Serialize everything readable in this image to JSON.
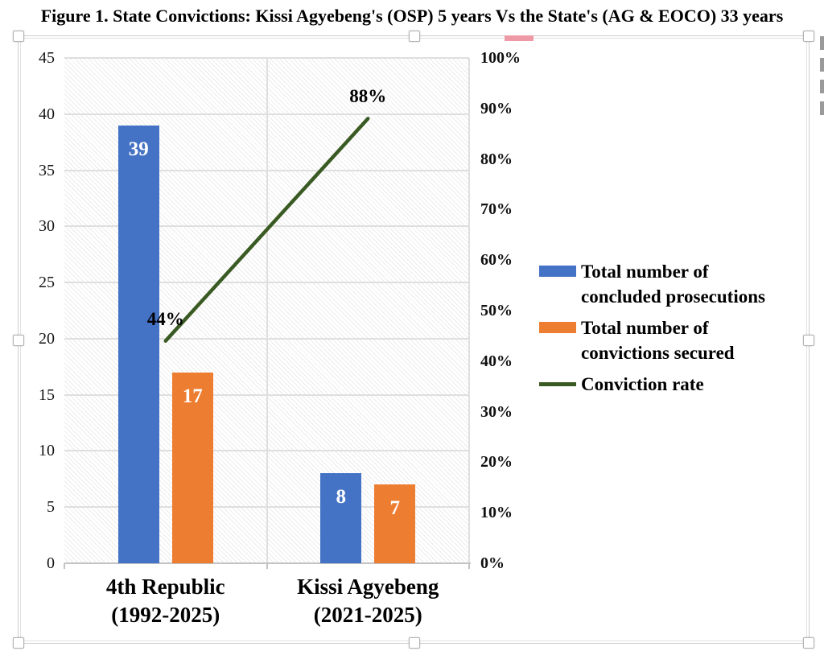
{
  "header": {
    "title": "Figure 1. State Convictions: Kissi Agyebeng's (OSP) 5 years Vs the State's (AG & EOCO) 33 years"
  },
  "chart_data": {
    "type": "combo",
    "title": "Figure 1. State Convictions: Kissi Agyebeng's (OSP) 5 years Vs the State's (AG & EOCO) 33 years",
    "categories": [
      "4th Republic (1992-2025)",
      "Kissi Agyebeng (2021-2025)"
    ],
    "category_label_lines": [
      [
        "4th Republic",
        "(1992-2025)"
      ],
      [
        "Kissi Agyebeng",
        "(2021-2025)"
      ]
    ],
    "series": [
      {
        "name": "Total number of concluded prosecutions",
        "type": "bar",
        "axis": "primary",
        "color": "#4472c4",
        "values": [
          39,
          8
        ],
        "data_labels": [
          "39",
          "8"
        ],
        "data_label_color": "#ffffff"
      },
      {
        "name": "Total number of convictions secured",
        "type": "bar",
        "axis": "primary",
        "color": "#ed7d31",
        "values": [
          17,
          7
        ],
        "data_labels": [
          "17",
          "7"
        ],
        "data_label_color": "#ffffff"
      },
      {
        "name": "Conviction rate",
        "type": "line",
        "axis": "secondary",
        "color": "#3a5a23",
        "values": [
          44,
          88
        ],
        "data_labels": [
          "44%",
          "88%"
        ],
        "data_label_color": "#000000"
      }
    ],
    "primary_axis": {
      "min": 0,
      "max": 45,
      "tick_step": 5,
      "tick_labels_top_to_bottom": [
        "45",
        "40",
        "35",
        "30",
        "25",
        "20",
        "15",
        "10",
        "5",
        "0"
      ]
    },
    "secondary_axis": {
      "min": 0,
      "max": 100,
      "tick_step": 10,
      "tick_labels_top_to_bottom": [
        "100%",
        "90%",
        "80%",
        "70%",
        "60%",
        "50%",
        "40%",
        "30%",
        "20%",
        "10%",
        "0%"
      ]
    },
    "grid": "horizontal gridlines at primary ticks; vertical gridlines at category boundaries; hatched plot background",
    "legend_position": "right-middle"
  },
  "legend": {
    "items": [
      {
        "label": "Total number of concluded prosecutions",
        "lines": [
          "Total number of",
          "concluded prosecutions"
        ],
        "swatch": "bar",
        "color": "#4472c4"
      },
      {
        "label": "Total number of convictions secured",
        "lines": [
          "Total number of",
          "convictions secured"
        ],
        "swatch": "bar",
        "color": "#ed7d31"
      },
      {
        "label": "Conviction rate",
        "lines": [
          "Conviction rate"
        ],
        "swatch": "line",
        "color": "#3a5a23"
      }
    ]
  },
  "colors": {
    "bar_blue": "#4472c4",
    "bar_orange": "#ed7d31",
    "line_green": "#3a5a23",
    "gridline": "#dfdfdf",
    "axis_line": "#c3c3c3",
    "selection_frame": "#cdcdcd",
    "hatch": "#ececec",
    "pink_mark": "#ee9aa6",
    "edge_mark": "#9a9a9a"
  }
}
